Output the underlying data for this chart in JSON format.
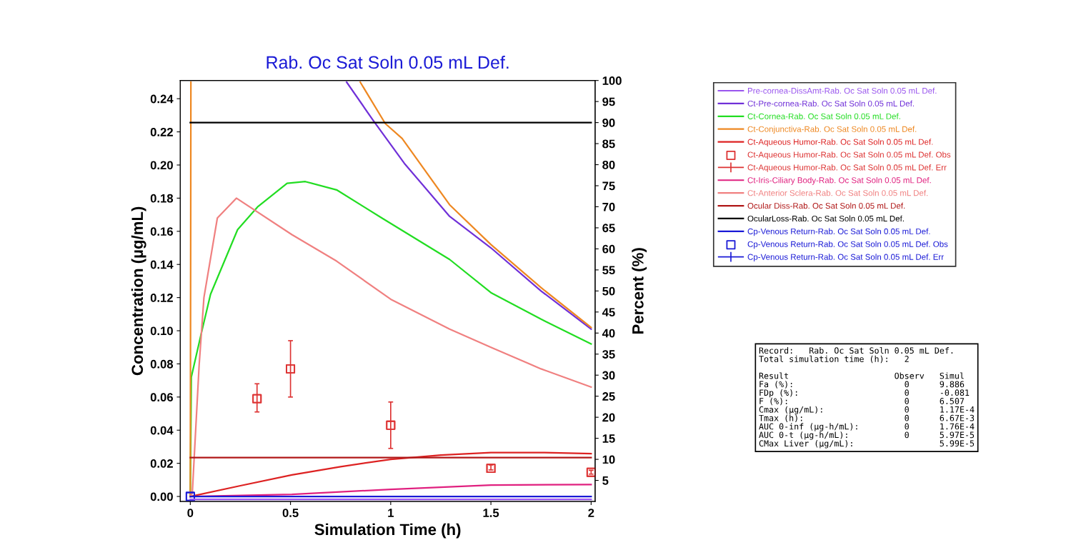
{
  "chart_data": {
    "type": "line",
    "title": "Rab. Oc Sat Soln 0.05 mL Def.",
    "xlabel": "Simulation Time (h)",
    "ylabel": "Concentration (µg/mL)",
    "y2label": "Percent (%)",
    "xlim": [
      -0.05,
      2.02
    ],
    "xticks": [
      0,
      0.5,
      1,
      1.5,
      2
    ],
    "ylim": [
      -0.003,
      0.251
    ],
    "yticks": [
      {
        "value": 0,
        "label": "0.00"
      },
      {
        "value": 0.02,
        "label": "0.02"
      },
      {
        "value": 0.04,
        "label": "0.04"
      },
      {
        "value": 0.06,
        "label": "0.06"
      },
      {
        "value": 0.08,
        "label": "0.08"
      },
      {
        "value": 0.1,
        "label": "0.10"
      },
      {
        "value": 0.12,
        "label": "0.12"
      },
      {
        "value": 0.14,
        "label": "0.14"
      },
      {
        "value": 0.16,
        "label": "0.16"
      },
      {
        "value": 0.18,
        "label": "0.18"
      },
      {
        "value": 0.2,
        "label": "0.20"
      },
      {
        "value": 0.22,
        "label": "0.22"
      },
      {
        "value": 0.24,
        "label": "0.24"
      }
    ],
    "y2lim": [
      0,
      100
    ],
    "y2ticks": [
      5,
      10,
      15,
      20,
      25,
      30,
      35,
      40,
      45,
      50,
      55,
      60,
      65,
      70,
      75,
      80,
      85,
      90,
      95,
      100
    ],
    "grid": false,
    "legend": "right",
    "series": [
      {
        "name": "Pre-cornea-DissAmt-Rab. Oc Sat Soln 0.05 mL Def.",
        "color": "#9955ee",
        "axis": "y2",
        "x": [
          0,
          2
        ],
        "values": [
          0.5,
          0.5
        ]
      },
      {
        "name": "Ct-Pre-cornea-Rab. Oc Sat Soln 0.05 mL Def.",
        "color": "#7030d8",
        "x": [
          0.78,
          0.912,
          1.068,
          1.294,
          1.5,
          1.75,
          2
        ],
        "values": [
          0.25,
          0.227,
          0.201,
          0.169,
          0.15,
          0.124,
          0.101
        ]
      },
      {
        "name": "Ct-Cornea-Rab. Oc Sat Soln 0.05 mL Def.",
        "color": "#22dd22",
        "x": [
          0,
          0.005,
          0.054,
          0.101,
          0.236,
          0.338,
          0.483,
          0.574,
          0.73,
          0.956,
          1.294,
          1.5,
          1.75,
          2
        ],
        "values": [
          0,
          0.072,
          0.098,
          0.122,
          0.161,
          0.175,
          0.189,
          0.19,
          0.185,
          0.168,
          0.143,
          0.123,
          0.107,
          0.092
        ]
      },
      {
        "name": "Ct-Conjunctiva-Rab. Oc Sat Soln 0.05 mL Def.",
        "color": "#ee8822",
        "x": [
          0,
          0.003,
          0.4,
          0.848,
          0.973,
          1.057,
          1.294,
          1.5,
          1.75,
          2
        ],
        "values": [
          0,
          0.25,
          null,
          0.25,
          0.225,
          0.216,
          0.176,
          0.152,
          0.126,
          0.102
        ]
      },
      {
        "name": "Ct-Aqueous Humor-Rab. Oc Sat Soln 0.05 mL Def.",
        "color": "#dd2222",
        "x": [
          0,
          0.25,
          0.507,
          0.75,
          1.0,
          1.25,
          1.5,
          1.75,
          2
        ],
        "values": [
          0,
          0.0065,
          0.013,
          0.018,
          0.0224,
          0.025,
          0.0265,
          0.0265,
          0.0258
        ]
      },
      {
        "name": "Ct-Aqueous Humor-Rab. Oc Sat Soln 0.05 mL Def. Obs",
        "color": "#dd3333",
        "type": "scatter",
        "marker": "square",
        "x": [
          0.333,
          0.5,
          1.0,
          1.5,
          2.0
        ],
        "values": [
          0.059,
          0.077,
          0.043,
          0.017,
          0.0146
        ]
      },
      {
        "name": "Ct-Aqueous Humor-Rab. Oc Sat Soln 0.05 mL Def. Err",
        "color": "#dd3333",
        "type": "scatter",
        "marker": "square",
        "x": [
          0.333,
          0.5,
          1.0,
          1.5,
          2.0
        ],
        "values": [
          0.059,
          0.077,
          0.043,
          0.017,
          0.0146
        ],
        "errors": [
          [
            0.051,
            0.068
          ],
          [
            0.06,
            0.094
          ],
          [
            0.029,
            0.057
          ],
          [
            0.016,
            0.019
          ],
          [
            0.0135,
            0.0158
          ]
        ]
      },
      {
        "name": "Ct-Iris-Ciliary Body-Rab. Oc Sat Soln 0.05 mL Def.",
        "color": "#e0207f",
        "x": [
          0,
          0.507,
          1.0,
          1.5,
          2
        ],
        "values": [
          0,
          0.0013,
          0.0043,
          0.0069,
          0.0072
        ]
      },
      {
        "name": "Ct-Anterior Sclera-Rab. Oc Sat Soln 0.05 mL Def.",
        "color": "#f08080",
        "x": [
          0,
          0.01,
          0.044,
          0.068,
          0.135,
          0.23,
          0.507,
          0.73,
          1.0,
          1.294,
          1.5,
          1.75,
          2
        ],
        "values": [
          0,
          0.002,
          0.079,
          0.12,
          0.168,
          0.18,
          0.158,
          0.142,
          0.119,
          0.101,
          0.09,
          0.077,
          0.066
        ]
      },
      {
        "name": "Ocular Diss-Rab. Oc Sat Soln 0.05 mL Def.",
        "color": "#b01818",
        "axis": "y2",
        "x": [
          0,
          2
        ],
        "values": [
          10.4,
          10.4
        ]
      },
      {
        "name": "OcularLoss-Rab. Oc Sat Soln 0.05 mL Def.",
        "color": "#000000",
        "axis": "y2",
        "x": [
          0,
          2
        ],
        "values": [
          90,
          90
        ]
      },
      {
        "name": "Cp-Venous Return-Rab. Oc Sat Soln 0.05 mL Def.",
        "color": "#1a1ad6",
        "x": [
          0,
          2
        ],
        "values": [
          0,
          0
        ]
      },
      {
        "name": "Cp-Venous Return-Rab. Oc Sat Soln 0.05 mL Def. Obs",
        "color": "#1a1ad6",
        "type": "scatter",
        "marker": "square",
        "x": [
          0
        ],
        "values": [
          0
        ]
      },
      {
        "name": "Cp-Venous Return-Rab. Oc Sat Soln 0.05 mL Def. Err",
        "color": "#1a1ad6",
        "type": "scatter",
        "marker": "square",
        "x": [
          0
        ],
        "values": [
          0
        ],
        "errors": [
          null
        ]
      }
    ],
    "annotations": [
      "Record:   Rab. Oc Sat Soln 0.05 mL Def.",
      "Total simulation time (h):   2",
      "Result                     Observ   Simul",
      "Fa (%):                      0      9.886",
      "FDp (%):                     0      -0.081",
      "F (%):                       0      6.507",
      "Cmax (µg/mL):                0      1.17E-4",
      "Tmax (h):                    0      6.67E-3",
      "AUC 0-inf (µg-h/mL):         0      1.76E-4",
      "AUC 0-t (µg-h/mL):           0      5.97E-5",
      "CMax Liver (µg/mL):                 5.99E-5"
    ]
  }
}
